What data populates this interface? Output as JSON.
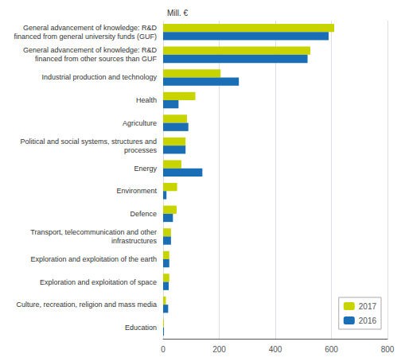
{
  "chart_data": {
    "type": "bar",
    "orientation": "horizontal",
    "xlabel": "Mill. €",
    "categories": [
      "General advancement of knowledge: R&D\nfinanced from general university funds (GUF)",
      "General advancement of knowledge: R&D\nfinanced from other sources than GUF",
      "Industrial production and technology",
      "Health",
      "Agriculture",
      "Political and social systems, structures and\nprocesses",
      "Energy",
      "Environment",
      "Defence",
      "Transport, telecommunication and other\ninfrastructures",
      "Exploration and exploitation of the earth",
      "Exploration and exploitation of space",
      "Culture, recreation, religion and mass media",
      "Education"
    ],
    "series": [
      {
        "name": "2017",
        "color": "#c8d400",
        "values": [
          610,
          525,
          205,
          115,
          85,
          80,
          65,
          50,
          48,
          28,
          22,
          22,
          10,
          3
        ]
      },
      {
        "name": "2016",
        "color": "#1a6eb5",
        "values": [
          590,
          515,
          270,
          55,
          90,
          80,
          140,
          12,
          35,
          28,
          22,
          20,
          18,
          3
        ]
      }
    ],
    "xlim": [
      0,
      800
    ],
    "xticks": [
      0,
      200,
      400,
      600,
      800
    ],
    "grid": true,
    "legend": "lower right"
  }
}
